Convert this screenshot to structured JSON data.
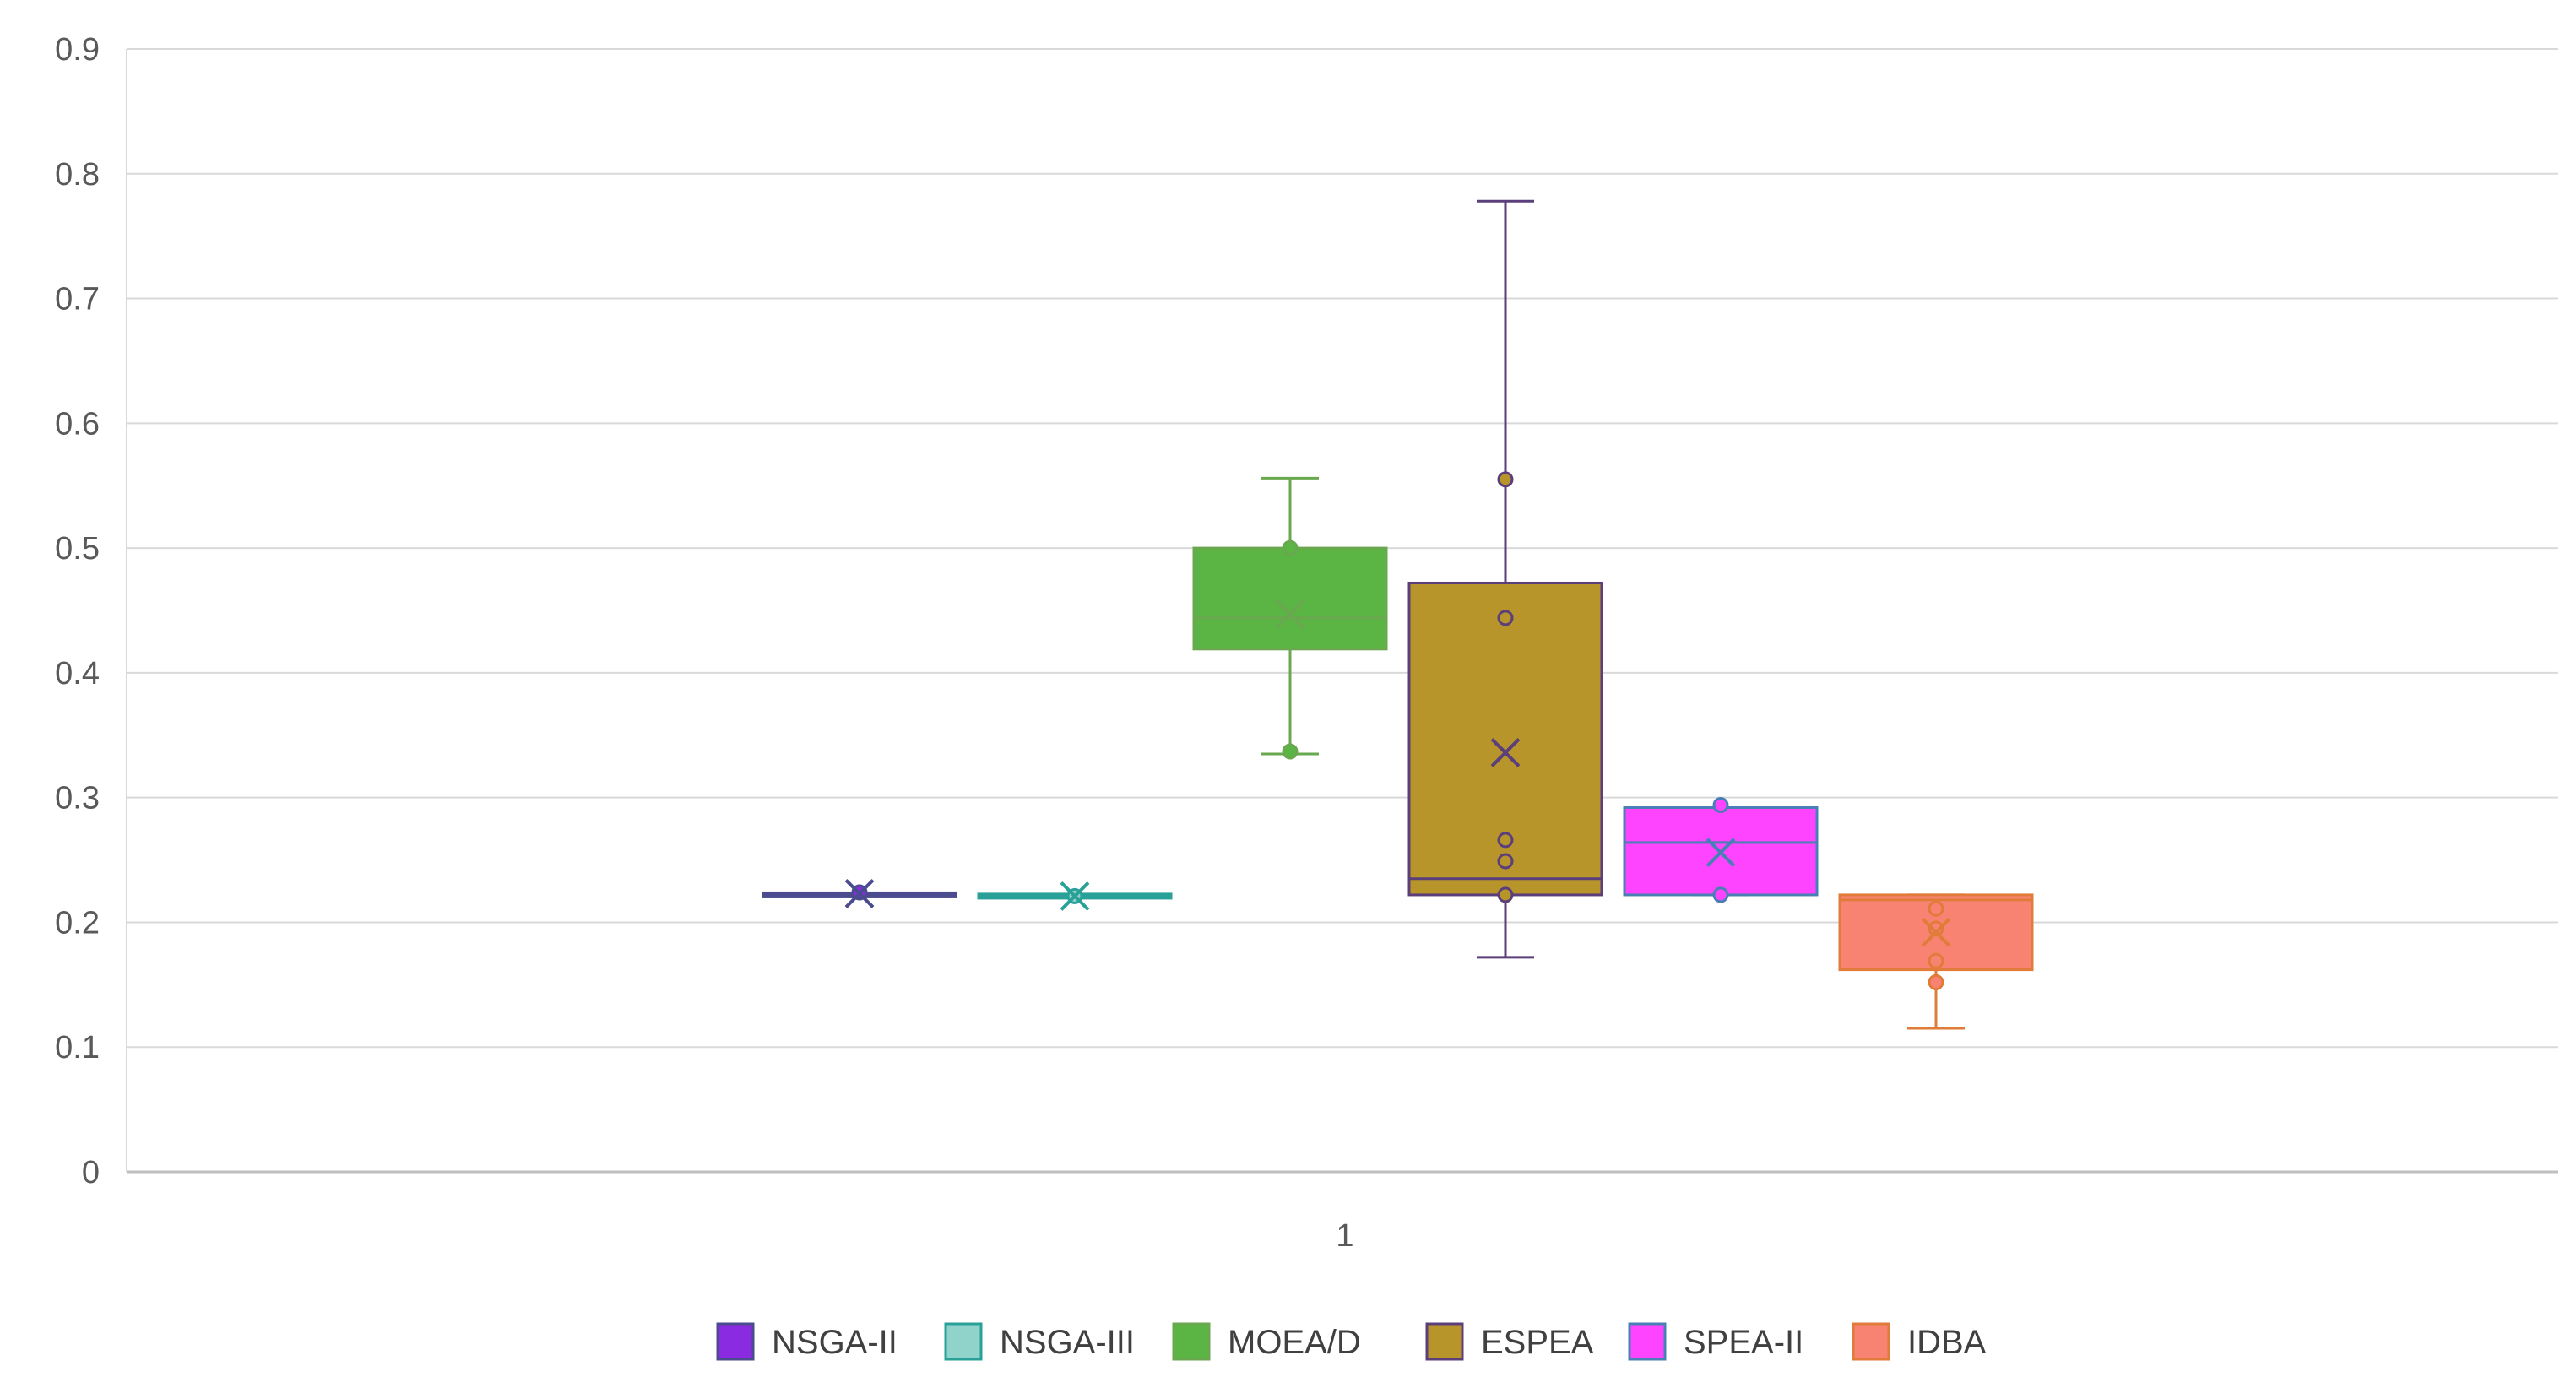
{
  "chart_data": {
    "type": "box",
    "title": "",
    "xlabel": "",
    "ylabel": "",
    "categories": [
      "1"
    ],
    "ylim": [
      0,
      0.9
    ],
    "yticks": [
      0,
      0.1,
      0.2,
      0.3,
      0.4,
      0.5,
      0.6,
      0.7,
      0.8,
      0.9
    ],
    "ytick_labels": [
      "0",
      "0.1",
      "0.2",
      "0.3",
      "0.4",
      "0.5",
      "0.6",
      "0.7",
      "0.8",
      "0.9"
    ],
    "grid": true,
    "legend_position": "bottom",
    "series": [
      {
        "name": "NSGA-II",
        "color": "#8A2BE2",
        "stroke": "#4B4B8F",
        "min": 0.222,
        "q1": 0.222,
        "median": 0.222,
        "q3": 0.222,
        "max": 0.222,
        "mean": 0.223,
        "points": [
          0.224
        ]
      },
      {
        "name": "NSGA-III",
        "color": "#8FD3CB",
        "stroke": "#2AA198",
        "min": 0.221,
        "q1": 0.221,
        "median": 0.221,
        "q3": 0.221,
        "max": 0.221,
        "mean": 0.221,
        "points": [
          0.221
        ]
      },
      {
        "name": "MOEA/D",
        "color": "#5BB545",
        "stroke": "#6AA84F",
        "min": 0.335,
        "q1": 0.419,
        "median": 0.444,
        "q3": 0.5,
        "max": 0.556,
        "mean": 0.447,
        "points": [
          0.5,
          0.337
        ]
      },
      {
        "name": "ESPEA",
        "color": "#B8952A",
        "stroke": "#5B3F7A",
        "min": 0.172,
        "q1": 0.222,
        "median": 0.235,
        "q3": 0.472,
        "max": 0.778,
        "mean": 0.336,
        "points": [
          0.555,
          0.444,
          0.266,
          0.249,
          0.222
        ]
      },
      {
        "name": "SPEA-II",
        "color": "#FF44FF",
        "stroke": "#4A7FB5",
        "min": 0.222,
        "q1": 0.222,
        "median": 0.264,
        "q3": 0.292,
        "max": 0.292,
        "mean": 0.256,
        "points": [
          0.294,
          0.222
        ]
      },
      {
        "name": "IDBA",
        "color": "#F98373",
        "stroke": "#E07B39",
        "min": 0.115,
        "q1": 0.162,
        "median": 0.218,
        "q3": 0.222,
        "max": 0.222,
        "mean": 0.192,
        "points": [
          0.211,
          0.195,
          0.169,
          0.152
        ]
      }
    ]
  }
}
